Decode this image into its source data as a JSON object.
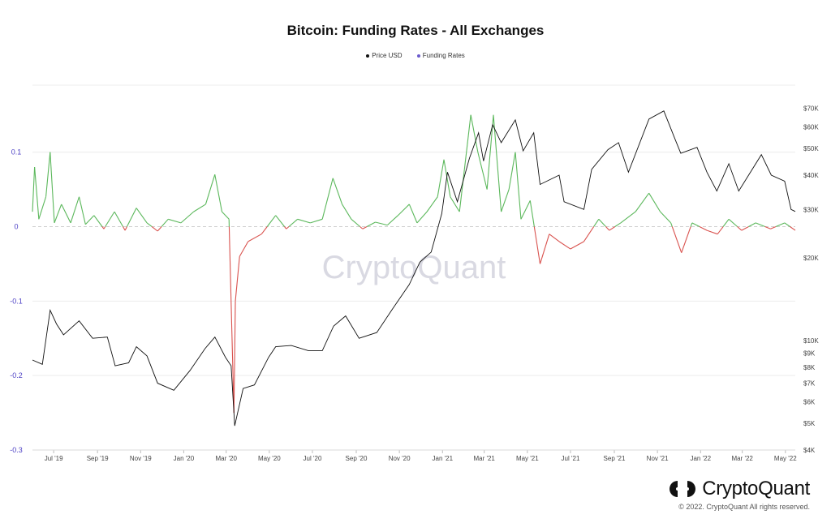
{
  "chart_data": {
    "type": "line",
    "title": "Bitcoin: Funding Rates - All Exchanges",
    "legend": [
      {
        "name": "Price USD",
        "color": "#111111"
      },
      {
        "name": "Funding Rates",
        "color": "#6a5acd"
      }
    ],
    "legend_position": "top-center",
    "grid": true,
    "x_tick_labels": [
      "Jul '19",
      "Sep '19",
      "Nov '19",
      "Jan '20",
      "Mar '20",
      "May '20",
      "Jul '20",
      "Sep '20",
      "Nov '20",
      "Jan '21",
      "Mar '21",
      "May '21",
      "Jul '21",
      "Sep '21",
      "Nov '21",
      "Jan '22",
      "Mar '22",
      "May '22"
    ],
    "x_range": [
      "2019-06-01",
      "2022-05-15"
    ],
    "left_axis": {
      "label": "",
      "ticks": [
        0.1,
        0,
        -0.1,
        -0.2,
        -0.3
      ],
      "tick_labels": [
        "0.1",
        "0",
        "-0.1",
        "-0.2",
        "-0.3"
      ],
      "range": [
        -0.3,
        0.19
      ],
      "color": "#4b3fc4"
    },
    "right_axis": {
      "label": "",
      "scale": "log",
      "ticks": [
        70000,
        60000,
        50000,
        40000,
        30000,
        20000,
        10000,
        9000,
        8000,
        7000,
        6000,
        5000,
        4000
      ],
      "tick_labels": [
        "$70K",
        "$60K",
        "$50K",
        "$40K",
        "$30K",
        "$20K",
        "$10K",
        "$9K",
        "$8K",
        "$7K",
        "$6K",
        "$5K",
        "$4K"
      ],
      "range": [
        4000,
        85000
      ]
    },
    "series": [
      {
        "name": "Price USD",
        "axis": "right",
        "color": "#111111",
        "points": [
          [
            "2019-06-01",
            8500
          ],
          [
            "2019-06-15",
            8200
          ],
          [
            "2019-06-26",
            12900
          ],
          [
            "2019-07-05",
            11500
          ],
          [
            "2019-07-15",
            10500
          ],
          [
            "2019-08-06",
            11800
          ],
          [
            "2019-08-25",
            10200
          ],
          [
            "2019-09-15",
            10300
          ],
          [
            "2019-09-26",
            8100
          ],
          [
            "2019-10-15",
            8300
          ],
          [
            "2019-10-26",
            9500
          ],
          [
            "2019-11-10",
            8800
          ],
          [
            "2019-11-25",
            7000
          ],
          [
            "2019-12-18",
            6600
          ],
          [
            "2020-01-10",
            7800
          ],
          [
            "2020-01-31",
            9350
          ],
          [
            "2020-02-14",
            10300
          ],
          [
            "2020-02-29",
            8700
          ],
          [
            "2020-03-08",
            8100
          ],
          [
            "2020-03-13",
            4900
          ],
          [
            "2020-03-25",
            6700
          ],
          [
            "2020-04-10",
            6900
          ],
          [
            "2020-04-30",
            8700
          ],
          [
            "2020-05-10",
            9500
          ],
          [
            "2020-06-01",
            9600
          ],
          [
            "2020-06-25",
            9200
          ],
          [
            "2020-07-15",
            9200
          ],
          [
            "2020-07-31",
            11300
          ],
          [
            "2020-08-17",
            12300
          ],
          [
            "2020-09-05",
            10200
          ],
          [
            "2020-09-30",
            10700
          ],
          [
            "2020-10-21",
            12900
          ],
          [
            "2020-11-15",
            16000
          ],
          [
            "2020-11-30",
            19300
          ],
          [
            "2020-12-16",
            21000
          ],
          [
            "2020-12-31",
            29000
          ],
          [
            "2021-01-08",
            41000
          ],
          [
            "2021-01-22",
            32000
          ],
          [
            "2021-02-08",
            46000
          ],
          [
            "2021-02-21",
            57000
          ],
          [
            "2021-02-28",
            45000
          ],
          [
            "2021-03-13",
            61000
          ],
          [
            "2021-03-25",
            52500
          ],
          [
            "2021-04-14",
            63500
          ],
          [
            "2021-04-25",
            49000
          ],
          [
            "2021-05-10",
            57000
          ],
          [
            "2021-05-19",
            37000
          ],
          [
            "2021-06-15",
            40000
          ],
          [
            "2021-06-22",
            32000
          ],
          [
            "2021-07-20",
            30000
          ],
          [
            "2021-07-31",
            42000
          ],
          [
            "2021-08-23",
            49500
          ],
          [
            "2021-09-07",
            52500
          ],
          [
            "2021-09-21",
            41000
          ],
          [
            "2021-10-20",
            64000
          ],
          [
            "2021-11-10",
            68500
          ],
          [
            "2021-11-26",
            54000
          ],
          [
            "2021-12-04",
            48000
          ],
          [
            "2021-12-27",
            50500
          ],
          [
            "2022-01-10",
            41000
          ],
          [
            "2022-01-24",
            35000
          ],
          [
            "2022-02-10",
            44000
          ],
          [
            "2022-02-24",
            35000
          ],
          [
            "2022-03-28",
            47500
          ],
          [
            "2022-04-11",
            40000
          ],
          [
            "2022-04-30",
            38000
          ],
          [
            "2022-05-09",
            30000
          ],
          [
            "2022-05-15",
            29500
          ]
        ]
      },
      {
        "name": "Funding Rates",
        "axis": "left",
        "color_positive": "#5cb85c",
        "color_negative": "#d9534f",
        "points": [
          [
            "2019-06-01",
            0.02
          ],
          [
            "2019-06-04",
            0.08
          ],
          [
            "2019-06-10",
            0.01
          ],
          [
            "2019-06-20",
            0.04
          ],
          [
            "2019-06-26",
            0.1
          ],
          [
            "2019-07-02",
            0.005
          ],
          [
            "2019-07-12",
            0.03
          ],
          [
            "2019-07-25",
            0.005
          ],
          [
            "2019-08-06",
            0.04
          ],
          [
            "2019-08-15",
            0.003
          ],
          [
            "2019-08-27",
            0.015
          ],
          [
            "2019-09-10",
            -0.003
          ],
          [
            "2019-09-25",
            0.02
          ],
          [
            "2019-10-10",
            -0.005
          ],
          [
            "2019-10-26",
            0.025
          ],
          [
            "2019-11-10",
            0.005
          ],
          [
            "2019-11-25",
            -0.006
          ],
          [
            "2019-12-10",
            0.01
          ],
          [
            "2019-12-28",
            0.005
          ],
          [
            "2020-01-15",
            0.02
          ],
          [
            "2020-02-01",
            0.03
          ],
          [
            "2020-02-14",
            0.07
          ],
          [
            "2020-02-24",
            0.02
          ],
          [
            "2020-03-05",
            0.01
          ],
          [
            "2020-03-12",
            -0.25
          ],
          [
            "2020-03-14",
            -0.1
          ],
          [
            "2020-03-20",
            -0.04
          ],
          [
            "2020-04-01",
            -0.02
          ],
          [
            "2020-04-20",
            -0.01
          ],
          [
            "2020-05-10",
            0.015
          ],
          [
            "2020-05-25",
            -0.003
          ],
          [
            "2020-06-10",
            0.01
          ],
          [
            "2020-06-28",
            0.005
          ],
          [
            "2020-07-15",
            0.01
          ],
          [
            "2020-07-30",
            0.065
          ],
          [
            "2020-08-12",
            0.03
          ],
          [
            "2020-08-25",
            0.01
          ],
          [
            "2020-09-10",
            -0.003
          ],
          [
            "2020-09-28",
            0.006
          ],
          [
            "2020-10-15",
            0.002
          ],
          [
            "2020-10-30",
            0.015
          ],
          [
            "2020-11-15",
            0.03
          ],
          [
            "2020-11-26",
            0.005
          ],
          [
            "2020-12-10",
            0.02
          ],
          [
            "2020-12-25",
            0.04
          ],
          [
            "2021-01-03",
            0.09
          ],
          [
            "2021-01-12",
            0.04
          ],
          [
            "2021-01-25",
            0.02
          ],
          [
            "2021-02-10",
            0.15
          ],
          [
            "2021-02-20",
            0.1
          ],
          [
            "2021-03-05",
            0.05
          ],
          [
            "2021-03-14",
            0.15
          ],
          [
            "2021-03-25",
            0.02
          ],
          [
            "2021-04-05",
            0.05
          ],
          [
            "2021-04-14",
            0.1
          ],
          [
            "2021-04-22",
            0.01
          ],
          [
            "2021-05-05",
            0.035
          ],
          [
            "2021-05-19",
            -0.05
          ],
          [
            "2021-06-01",
            -0.01
          ],
          [
            "2021-06-15",
            -0.02
          ],
          [
            "2021-07-01",
            -0.03
          ],
          [
            "2021-07-20",
            -0.02
          ],
          [
            "2021-08-10",
            0.01
          ],
          [
            "2021-08-25",
            -0.005
          ],
          [
            "2021-09-10",
            0.005
          ],
          [
            "2021-10-01",
            0.02
          ],
          [
            "2021-10-20",
            0.045
          ],
          [
            "2021-11-05",
            0.02
          ],
          [
            "2021-11-20",
            0.005
          ],
          [
            "2021-12-05",
            -0.035
          ],
          [
            "2021-12-20",
            0.005
          ],
          [
            "2022-01-10",
            -0.005
          ],
          [
            "2022-01-25",
            -0.01
          ],
          [
            "2022-02-10",
            0.01
          ],
          [
            "2022-02-28",
            -0.005
          ],
          [
            "2022-03-20",
            0.005
          ],
          [
            "2022-04-10",
            -0.003
          ],
          [
            "2022-04-30",
            0.005
          ],
          [
            "2022-05-15",
            -0.005
          ]
        ]
      }
    ]
  },
  "watermark": "CryptoQuant",
  "footer": {
    "brand": "CryptoQuant",
    "copyright": "© 2022. CryptoQuant All rights reserved."
  }
}
